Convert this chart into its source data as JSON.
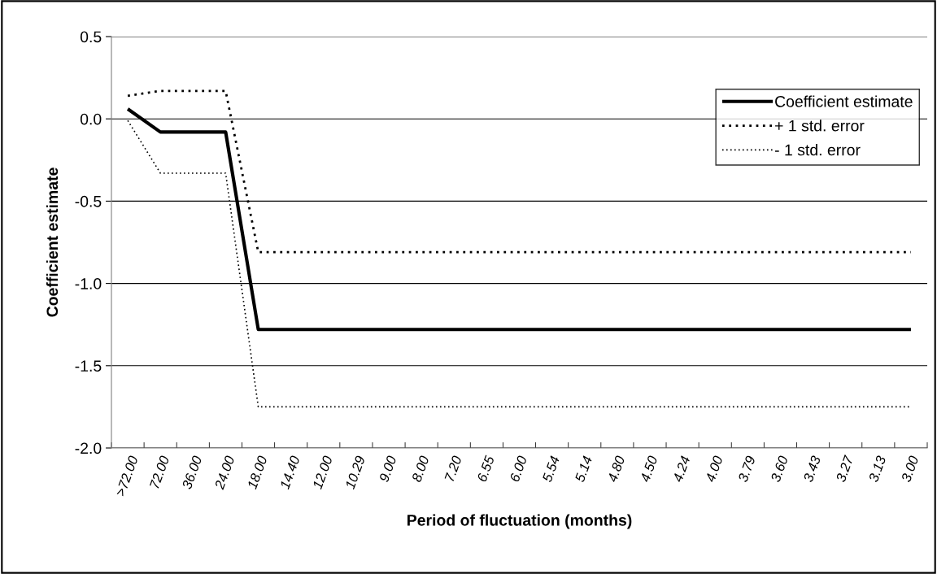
{
  "chart_data": {
    "type": "line",
    "xlabel": "Period of fluctuation (months)",
    "ylabel": "Coefficient estimate",
    "categories": [
      ">72.00",
      "72.00",
      "36.00",
      "24.00",
      "18.00",
      "14.40",
      "12.00",
      "10.29",
      "9.00",
      "8.00",
      "7.20",
      "6.55",
      "6.00",
      "5.54",
      "5.14",
      "4.80",
      "4.50",
      "4.24",
      "4.00",
      "3.79",
      "3.60",
      "3.43",
      "3.27",
      "3.13",
      "3.00"
    ],
    "series": [
      {
        "name": "Coefficient estimate",
        "color": "#000000",
        "line_style": "solid",
        "values": [
          0.06,
          -0.08,
          -0.08,
          -0.08,
          -1.28,
          -1.28,
          -1.28,
          -1.28,
          -1.28,
          -1.28,
          -1.28,
          -1.28,
          -1.28,
          -1.28,
          -1.28,
          -1.28,
          -1.28,
          -1.28,
          -1.28,
          -1.28,
          -1.28,
          -1.28,
          -1.28,
          -1.28,
          -1.28
        ]
      },
      {
        "name": "+ 1 std. error",
        "color": "#000000",
        "line_style": "dotted",
        "values": [
          0.14,
          0.17,
          0.17,
          0.17,
          -0.81,
          -0.81,
          -0.81,
          -0.81,
          -0.81,
          -0.81,
          -0.81,
          -0.81,
          -0.81,
          -0.81,
          -0.81,
          -0.81,
          -0.81,
          -0.81,
          -0.81,
          -0.81,
          -0.81,
          -0.81,
          -0.81,
          -0.81,
          -0.81
        ]
      },
      {
        "name": "- 1 std. error",
        "color": "#000000",
        "line_style": "dotted",
        "values": [
          -0.01,
          -0.33,
          -0.33,
          -0.33,
          -1.75,
          -1.75,
          -1.75,
          -1.75,
          -1.75,
          -1.75,
          -1.75,
          -1.75,
          -1.75,
          -1.75,
          -1.75,
          -1.75,
          -1.75,
          -1.75,
          -1.75,
          -1.75,
          -1.75,
          -1.75,
          -1.75,
          -1.75,
          -1.75
        ]
      }
    ],
    "ylim": [
      -2.0,
      0.5
    ],
    "yticks": [
      {
        "value": -2.0,
        "label": "-2.0"
      },
      {
        "value": -1.5,
        "label": "-1.5"
      },
      {
        "value": -1.0,
        "label": "-1.0"
      },
      {
        "value": -0.5,
        "label": "-0.5"
      },
      {
        "value": 0.0,
        "label": "0.0"
      },
      {
        "value": 0.5,
        "label": "0.5"
      }
    ],
    "grid": "y",
    "legend": "right",
    "marker": "none"
  }
}
